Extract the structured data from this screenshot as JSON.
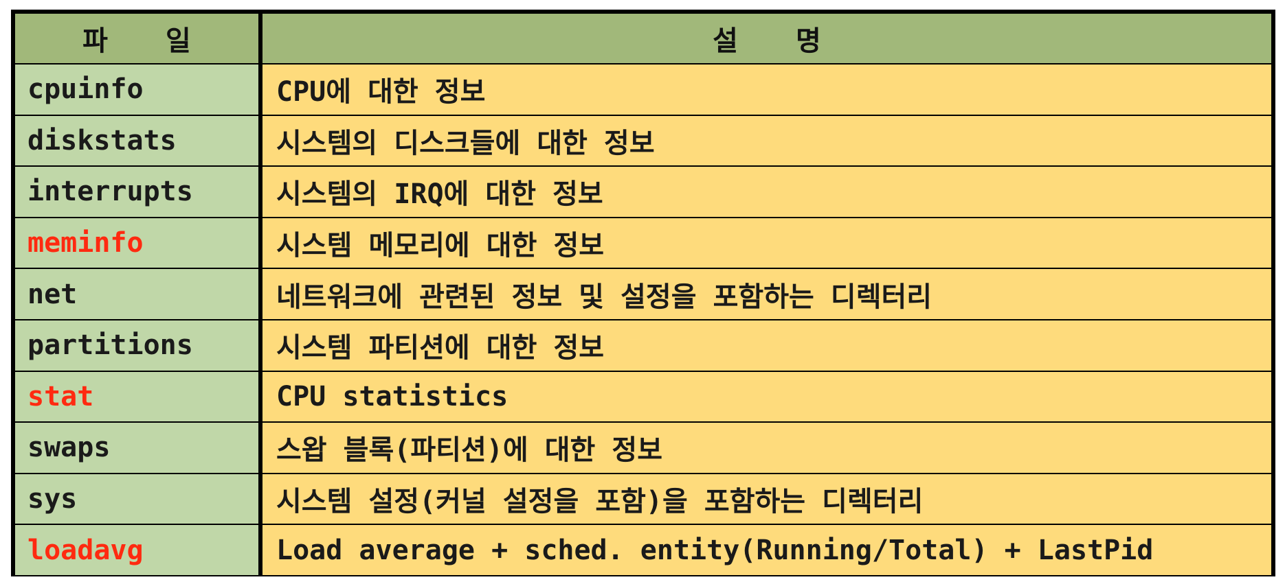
{
  "table": {
    "headers": {
      "file": "파 일",
      "description": "설 명"
    },
    "colors": {
      "header_bg": "#a1b87a",
      "file_col_bg": "#c0d7a8",
      "desc_col_bg": "#fedb7c",
      "highlight_text": "#ff2a10",
      "border": "#000000"
    },
    "rows": [
      {
        "file": "cpuinfo",
        "description": "CPU에 대한 정보",
        "highlight": false
      },
      {
        "file": "diskstats",
        "description": "시스템의 디스크들에 대한 정보",
        "highlight": false
      },
      {
        "file": "interrupts",
        "description": "시스템의 IRQ에 대한 정보",
        "highlight": false
      },
      {
        "file": "meminfo",
        "description": "시스템 메모리에 대한 정보",
        "highlight": true
      },
      {
        "file": "net",
        "description": "네트워크에 관련된 정보 및 설정을 포함하는 디렉터리",
        "highlight": false
      },
      {
        "file": "partitions",
        "description": "시스템 파티션에 대한 정보",
        "highlight": false
      },
      {
        "file": "stat",
        "description": "CPU statistics",
        "highlight": true
      },
      {
        "file": "swaps",
        "description": "스왑 블록(파티션)에 대한 정보",
        "highlight": false
      },
      {
        "file": "sys",
        "description": "시스템 설정(커널 설정을 포함)을 포함하는 디렉터리",
        "highlight": false
      },
      {
        "file": "loadavg",
        "description": "Load average + sched. entity(Running/Total) + LastPid",
        "highlight": true
      }
    ]
  }
}
